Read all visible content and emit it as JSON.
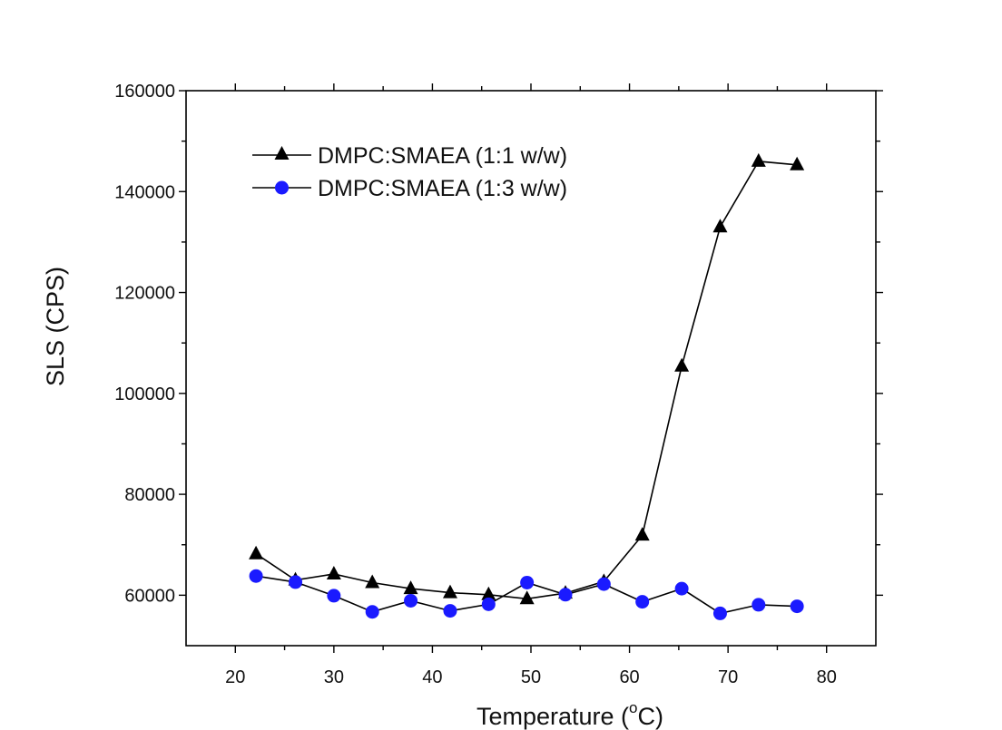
{
  "chart_data": {
    "type": "line",
    "title": "",
    "xlabel": "Temperature (",
    "xlabel_sup": "o",
    "xlabel_tail": "C)",
    "ylabel": "SLS (CPS)",
    "xlim": [
      15,
      85
    ],
    "ylim": [
      50000,
      160000
    ],
    "x_ticks": [
      "20",
      "30",
      "40",
      "50",
      "60",
      "70",
      "80"
    ],
    "y_ticks": [
      "60000",
      "80000",
      "100000",
      "120000",
      "140000",
      "160000"
    ],
    "grid": false,
    "legend_position": "top-left",
    "series": [
      {
        "name": "DMPC:SMAEA (1:1 w/w)",
        "marker": "triangle",
        "color": "#000000",
        "x": [
          22.1,
          26.1,
          30.0,
          33.9,
          37.8,
          41.8,
          45.7,
          49.6,
          53.5,
          57.4,
          61.3,
          65.3,
          69.2,
          73.1,
          77.0
        ],
        "y": [
          68200,
          63000,
          64200,
          62500,
          61300,
          60500,
          60100,
          59300,
          60400,
          62700,
          71900,
          105400,
          133000,
          146000,
          145300
        ]
      },
      {
        "name": "DMPC:SMAEA (1:3 w/w)",
        "marker": "circle",
        "color": "#1a1aff",
        "x": [
          22.1,
          26.1,
          30.0,
          33.9,
          37.8,
          41.8,
          45.7,
          49.6,
          53.5,
          57.4,
          61.3,
          65.3,
          69.2,
          73.1,
          77.0
        ],
        "y": [
          63800,
          62600,
          59900,
          56700,
          58900,
          56900,
          58200,
          62500,
          60100,
          62200,
          58700,
          61300,
          56400,
          58100,
          57800
        ]
      }
    ]
  }
}
